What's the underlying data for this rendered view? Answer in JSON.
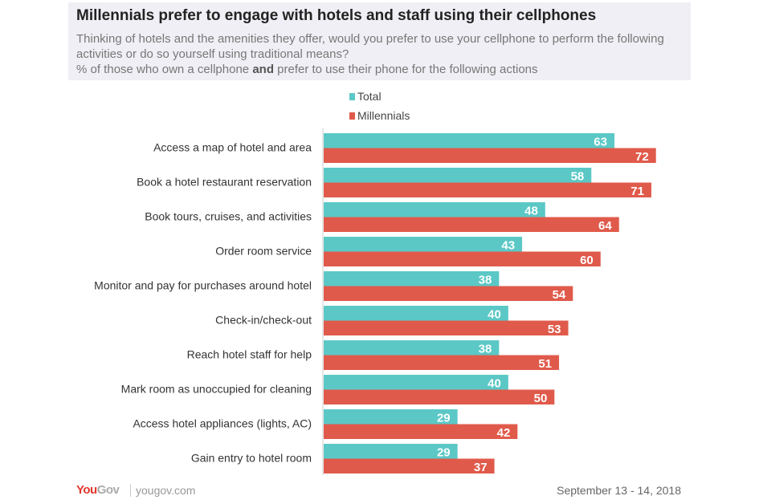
{
  "header": {
    "title": "Millennials prefer to engage with hotels and staff using their cellphones",
    "subtitle": "Thinking of hotels and the amenities they offer, would you prefer to use your cellphone to perform the following activities or do so yourself using traditional means?",
    "note_pre": "% of those who own a cellphone ",
    "note_bold": "and",
    "note_post": " prefer to use their phone for the following actions"
  },
  "chart_data": {
    "type": "bar",
    "orientation": "horizontal",
    "legend_position": "top-center",
    "grid": false,
    "categories": [
      "Access a map of hotel and area",
      "Book a hotel restaurant reservation",
      "Book tours, cruises, and activities",
      "Order room service",
      "Monitor and pay for purchases around hotel",
      "Check-in/check-out",
      "Reach hotel staff for help",
      "Mark room as unoccupied for cleaning",
      "Access hotel appliances (lights, AC)",
      "Gain entry to hotel room"
    ],
    "series": [
      {
        "name": "Total",
        "color": "#5bc8c6",
        "values": [
          63,
          58,
          48,
          43,
          38,
          40,
          38,
          40,
          29,
          29
        ]
      },
      {
        "name": "Millennials",
        "color": "#e05a4b",
        "values": [
          72,
          71,
          64,
          60,
          54,
          53,
          51,
          50,
          42,
          37
        ]
      }
    ]
  },
  "footer": {
    "logo_you": "You",
    "logo_gov": "Gov",
    "url": "yougov.com",
    "date": "September 13 - 14, 2018"
  }
}
